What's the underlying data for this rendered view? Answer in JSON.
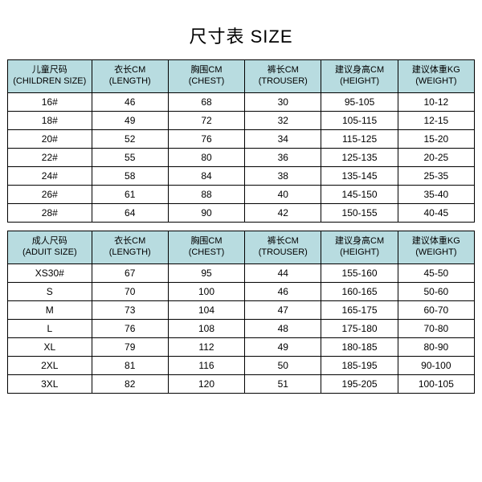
{
  "title": "尺寸表 SIZE",
  "header_bg": "#b8dce0",
  "children_table": {
    "columns": [
      {
        "l1": "儿童尺码",
        "l2": "(CHILDREN SIZE)"
      },
      {
        "l1": "衣长CM",
        "l2": "(LENGTH)"
      },
      {
        "l1": "胸围CM",
        "l2": "(CHEST)"
      },
      {
        "l1": "裤长CM",
        "l2": "(TROUSER)"
      },
      {
        "l1": "建议身高CM",
        "l2": "(HEIGHT)"
      },
      {
        "l1": "建议体重KG",
        "l2": "(WEIGHT)"
      }
    ],
    "rows": [
      [
        "16#",
        "46",
        "68",
        "30",
        "95-105",
        "10-12"
      ],
      [
        "18#",
        "49",
        "72",
        "32",
        "105-115",
        "12-15"
      ],
      [
        "20#",
        "52",
        "76",
        "34",
        "115-125",
        "15-20"
      ],
      [
        "22#",
        "55",
        "80",
        "36",
        "125-135",
        "20-25"
      ],
      [
        "24#",
        "58",
        "84",
        "38",
        "135-145",
        "25-35"
      ],
      [
        "26#",
        "61",
        "88",
        "40",
        "145-150",
        "35-40"
      ],
      [
        "28#",
        "64",
        "90",
        "42",
        "150-155",
        "40-45"
      ]
    ]
  },
  "adult_table": {
    "columns": [
      {
        "l1": "成人尺码",
        "l2": "(ADUIT SIZE)"
      },
      {
        "l1": "衣长CM",
        "l2": "(LENGTH)"
      },
      {
        "l1": "胸围CM",
        "l2": "(CHEST)"
      },
      {
        "l1": "裤长CM",
        "l2": "(TROUSER)"
      },
      {
        "l1": "建议身高CM",
        "l2": "(HEIGHT)"
      },
      {
        "l1": "建议体重KG",
        "l2": "(WEIGHT)"
      }
    ],
    "rows": [
      [
        "XS30#",
        "67",
        "95",
        "44",
        "155-160",
        "45-50"
      ],
      [
        "S",
        "70",
        "100",
        "46",
        "160-165",
        "50-60"
      ],
      [
        "M",
        "73",
        "104",
        "47",
        "165-175",
        "60-70"
      ],
      [
        "L",
        "76",
        "108",
        "48",
        "175-180",
        "70-80"
      ],
      [
        "XL",
        "79",
        "112",
        "49",
        "180-185",
        "80-90"
      ],
      [
        "2XL",
        "81",
        "116",
        "50",
        "185-195",
        "90-100"
      ],
      [
        "3XL",
        "82",
        "120",
        "51",
        "195-205",
        "100-105"
      ]
    ]
  }
}
